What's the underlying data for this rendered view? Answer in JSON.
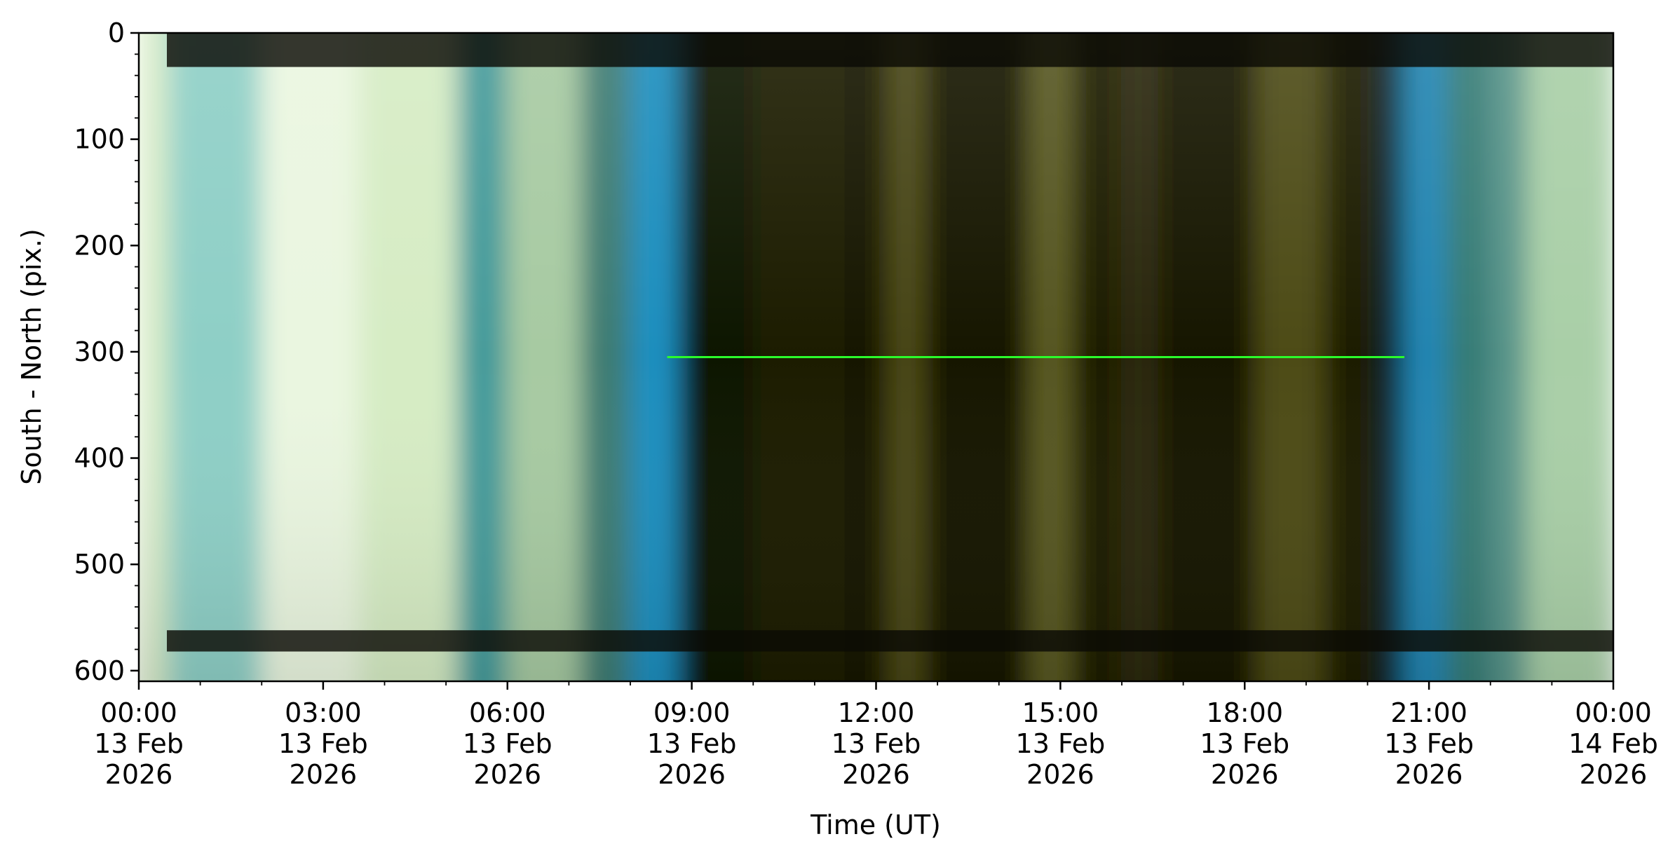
{
  "chart_data": {
    "type": "heatmap",
    "title": "",
    "xlabel": "Time (UT)",
    "ylabel": "South - North (pix.)",
    "y_range": [
      0,
      610
    ],
    "y_inverted": true,
    "x_range": [
      "2026-02-13T00:00",
      "2026-02-14T00:00"
    ],
    "y_ticks": [
      0,
      100,
      200,
      300,
      400,
      500,
      600
    ],
    "y_tick_labels": [
      "0",
      "100",
      "200",
      "300",
      "400",
      "500",
      "600"
    ],
    "x_ticks_hours": [
      0,
      3,
      6,
      9,
      12,
      15,
      18,
      21,
      24
    ],
    "x_tick_labels": [
      [
        "00:00",
        "13 Feb",
        "2026"
      ],
      [
        "03:00",
        "13 Feb",
        "2026"
      ],
      [
        "06:00",
        "13 Feb",
        "2026"
      ],
      [
        "09:00",
        "13 Feb",
        "2026"
      ],
      [
        "12:00",
        "13 Feb",
        "2026"
      ],
      [
        "15:00",
        "13 Feb",
        "2026"
      ],
      [
        "18:00",
        "13 Feb",
        "2026"
      ],
      [
        "21:00",
        "13 Feb",
        "2026"
      ],
      [
        "00:00",
        "14 Feb",
        "2026"
      ]
    ],
    "bands": [
      {
        "start_h": 0.0,
        "end_h": 0.5,
        "color": "#d8ecc8"
      },
      {
        "start_h": 0.5,
        "end_h": 2.0,
        "color": "#8ecfc6"
      },
      {
        "start_h": 2.0,
        "end_h": 3.6,
        "color": "#eaf6e0"
      },
      {
        "start_h": 3.6,
        "end_h": 5.2,
        "color": "#d6ecc4"
      },
      {
        "start_h": 5.2,
        "end_h": 6.0,
        "color": "#3f9a9a"
      },
      {
        "start_h": 6.0,
        "end_h": 7.2,
        "color": "#a7caa2"
      },
      {
        "start_h": 7.2,
        "end_h": 8.0,
        "color": "#3e7b72"
      },
      {
        "start_h": 8.0,
        "end_h": 8.8,
        "color": "#1f8fbf"
      },
      {
        "start_h": 8.8,
        "end_h": 10.0,
        "color": "#111500"
      },
      {
        "start_h": 10.0,
        "end_h": 11.5,
        "color": "#1e1c06"
      },
      {
        "start_h": 11.5,
        "end_h": 12.2,
        "color": "#151602"
      },
      {
        "start_h": 12.2,
        "end_h": 12.8,
        "color": "#4b4a16"
      },
      {
        "start_h": 12.8,
        "end_h": 14.5,
        "color": "#161702"
      },
      {
        "start_h": 14.5,
        "end_h": 15.2,
        "color": "#5a5a20"
      },
      {
        "start_h": 15.2,
        "end_h": 16.0,
        "color": "#1a1a04"
      },
      {
        "start_h": 16.0,
        "end_h": 16.6,
        "color": "#2d2c0c"
      },
      {
        "start_h": 16.6,
        "end_h": 18.2,
        "color": "#181903"
      },
      {
        "start_h": 18.2,
        "end_h": 19.3,
        "color": "#4e4c18"
      },
      {
        "start_h": 19.3,
        "end_h": 20.2,
        "color": "#1f1f06"
      },
      {
        "start_h": 20.2,
        "end_h": 20.6,
        "color": "#0f2a33"
      },
      {
        "start_h": 20.6,
        "end_h": 21.3,
        "color": "#2486b4"
      },
      {
        "start_h": 21.3,
        "end_h": 22.0,
        "color": "#367c76"
      },
      {
        "start_h": 22.0,
        "end_h": 22.6,
        "color": "#58948a"
      },
      {
        "start_h": 22.6,
        "end_h": 24.0,
        "color": "#a9cfa7"
      }
    ],
    "features": {
      "green_line_y": 305,
      "green_line_start_h": 8.6,
      "green_line_end_h": 20.6,
      "green_line_color": "#2bff2b",
      "dark_stripe_top_y": [
        0,
        32
      ],
      "dark_stripe_bottom_y": [
        562,
        582
      ],
      "stripe_color": "#0b0b05"
    }
  }
}
